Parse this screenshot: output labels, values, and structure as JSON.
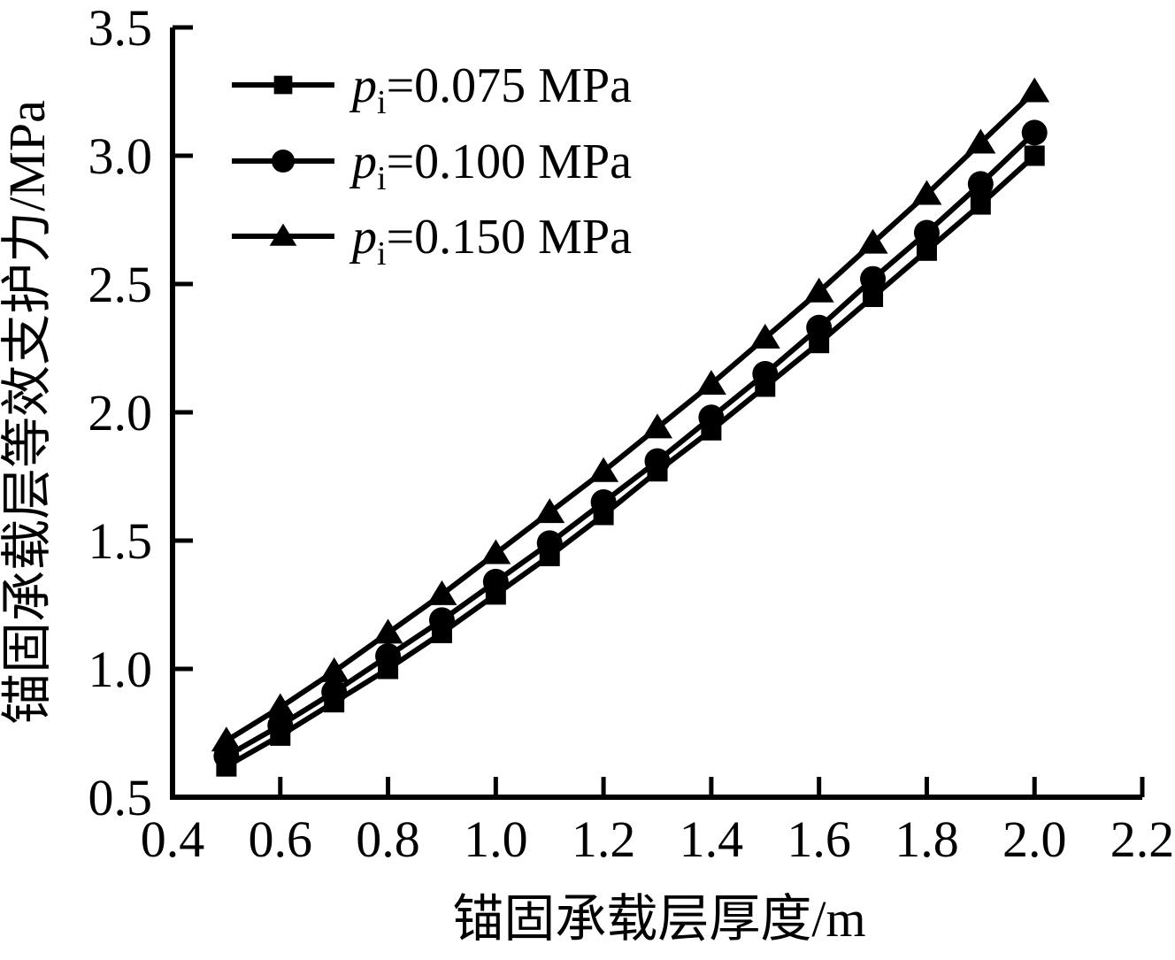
{
  "chart_data": {
    "type": "line",
    "title": "",
    "xlabel": "锚固承载层厚度/m",
    "ylabel": "锚固承载层等效支护力/MPa",
    "xlim": [
      0.4,
      2.2
    ],
    "ylim": [
      0.5,
      3.5
    ],
    "x_ticks": [
      "0.4",
      "0.6",
      "0.8",
      "1.0",
      "1.2",
      "1.4",
      "1.6",
      "1.8",
      "2.0",
      "2.2"
    ],
    "y_ticks": [
      "0.5",
      "1.0",
      "1.5",
      "2.0",
      "2.5",
      "3.0",
      "3.5"
    ],
    "grid": false,
    "legend_position": "upper-left-inside",
    "background": "#ffffff",
    "axis_color": "#000000",
    "x": [
      0.5,
      0.6,
      0.7,
      0.8,
      0.9,
      1.0,
      1.1,
      1.2,
      1.3,
      1.4,
      1.5,
      1.6,
      1.7,
      1.8,
      1.9,
      2.0
    ],
    "series": [
      {
        "name": "pi=0.075 MPa",
        "label_parts": {
          "var": "p",
          "sub": "i",
          "rest": "=0.075 MPa"
        },
        "marker": "square",
        "color": "#000000",
        "values": [
          0.62,
          0.74,
          0.87,
          1.0,
          1.14,
          1.29,
          1.44,
          1.6,
          1.77,
          1.93,
          2.1,
          2.27,
          2.45,
          2.63,
          2.81,
          3.0
        ]
      },
      {
        "name": "pi=0.100 MPa",
        "label_parts": {
          "var": "p",
          "sub": "i",
          "rest": "=0.100 MPa"
        },
        "marker": "circle",
        "color": "#000000",
        "values": [
          0.66,
          0.78,
          0.91,
          1.05,
          1.19,
          1.34,
          1.49,
          1.65,
          1.81,
          1.98,
          2.15,
          2.33,
          2.52,
          2.7,
          2.89,
          3.09
        ]
      },
      {
        "name": "pi=0.150 MPa",
        "label_parts": {
          "var": "p",
          "sub": "i",
          "rest": "=0.150 MPa"
        },
        "marker": "triangle",
        "color": "#000000",
        "values": [
          0.72,
          0.85,
          0.99,
          1.14,
          1.29,
          1.45,
          1.61,
          1.77,
          1.94,
          2.11,
          2.29,
          2.47,
          2.66,
          2.85,
          3.05,
          3.25
        ]
      }
    ]
  }
}
